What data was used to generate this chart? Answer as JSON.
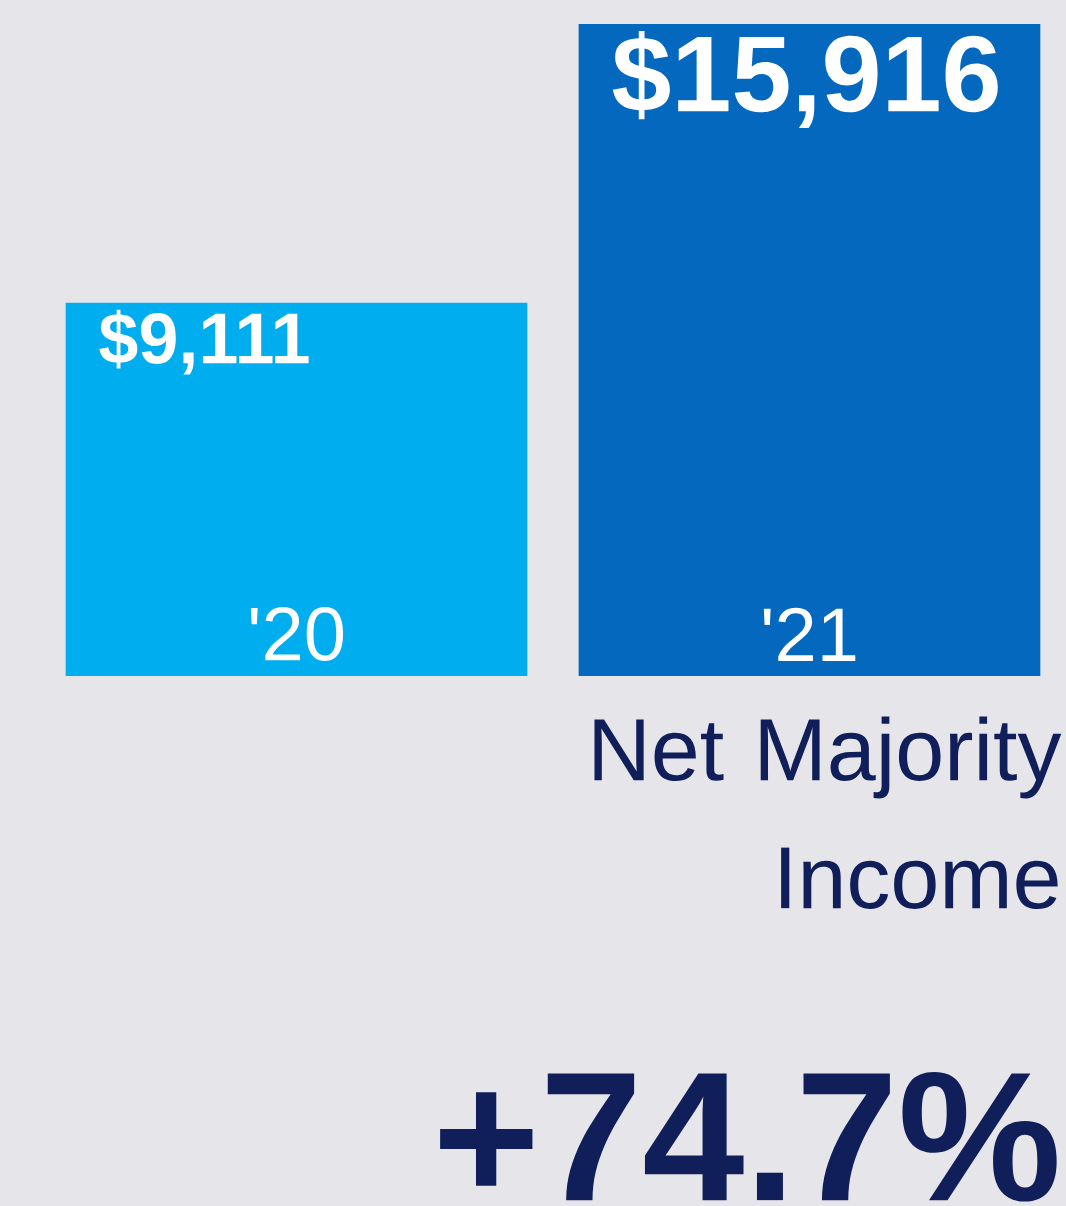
{
  "chart_data": {
    "type": "bar",
    "title": "Net Majority Income",
    "categories": [
      "'20",
      "'21"
    ],
    "values": [
      9111,
      15916
    ],
    "colors": [
      "#00aeef",
      "#0568bf"
    ],
    "value_labels": [
      "$9,111",
      "$15,916"
    ],
    "annotations": [
      "+74.7%"
    ]
  }
}
